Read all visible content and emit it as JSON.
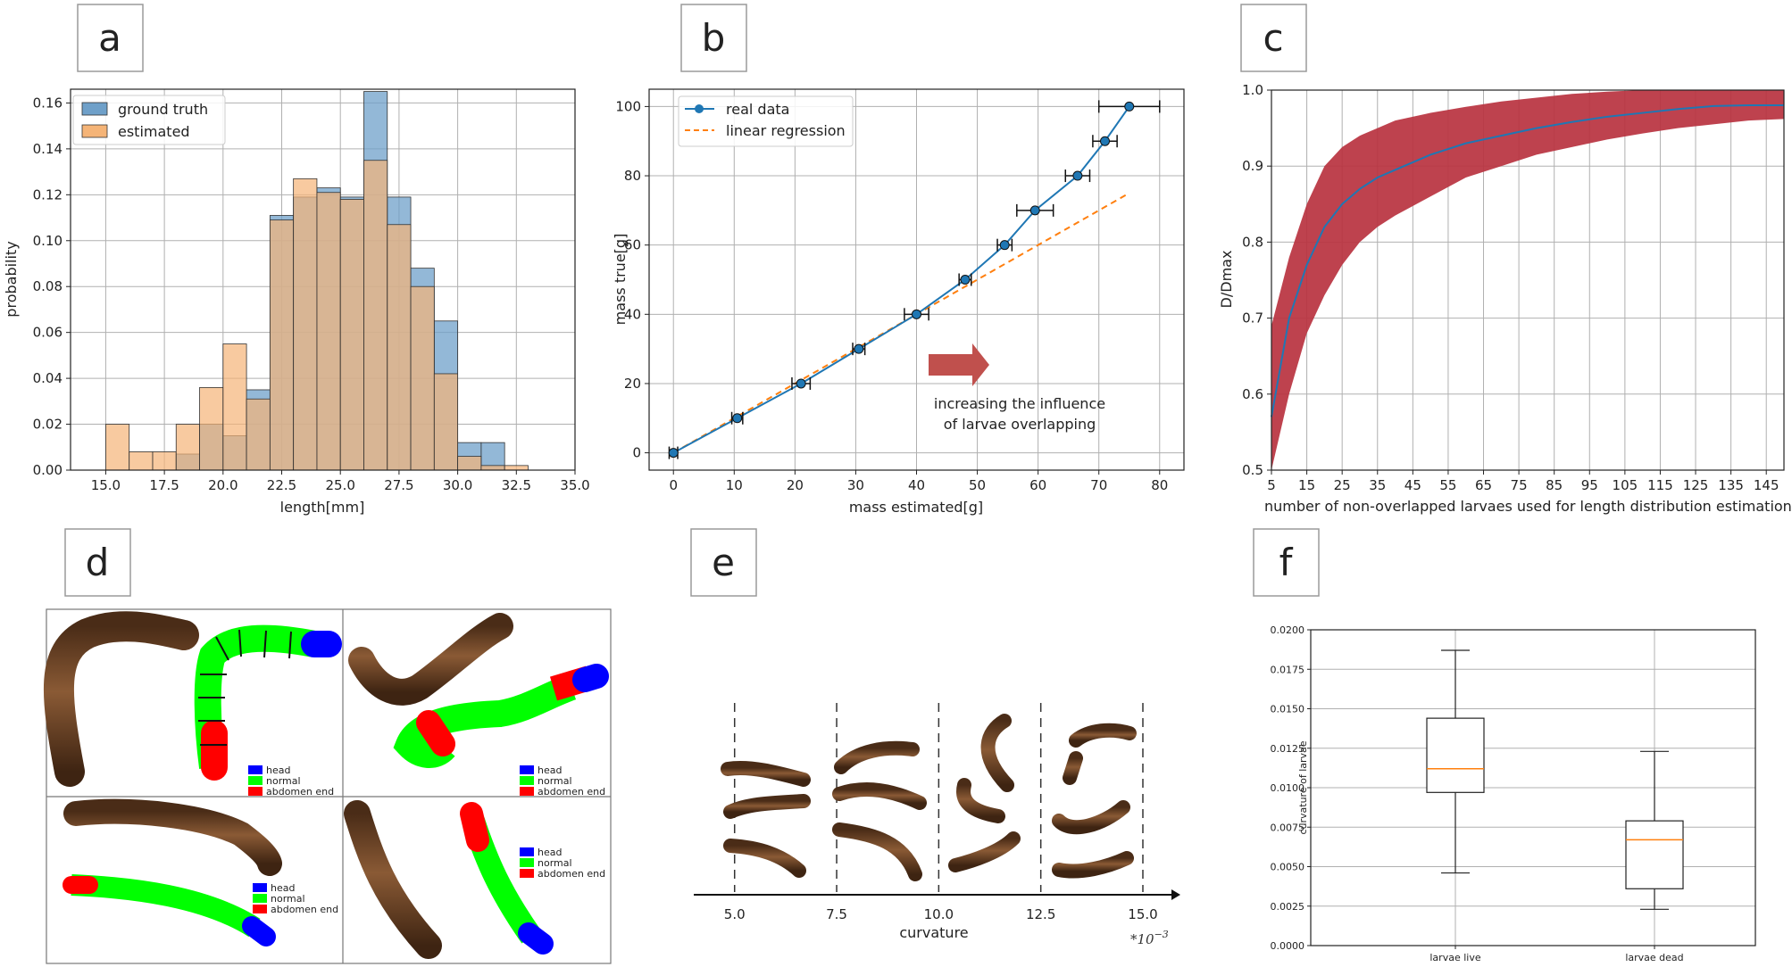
{
  "panels": {
    "a": "a",
    "b": "b",
    "c": "c",
    "d": "d",
    "e": "e",
    "f": "f"
  },
  "colors": {
    "blue": "#1f77b4",
    "orange": "#ff7f0e",
    "truth_fill": "#6fa0c9",
    "est_fill": "#f5b477",
    "band": "#b8323f",
    "arrow": "#c0504d",
    "head": "#0000ff",
    "normal": "#00ff00",
    "abdomen": "#ff0000",
    "larva": "#6b4226"
  },
  "chart_data": [
    {
      "id": "a",
      "type": "bar",
      "subtype": "step-histogram",
      "xlabel": "length[mm]",
      "ylabel": "probability",
      "xlim": [
        13.5,
        35.0
      ],
      "ylim": [
        0.0,
        0.166
      ],
      "xticks": [
        "15.0",
        "17.5",
        "20.0",
        "22.5",
        "25.0",
        "27.5",
        "30.0",
        "32.5",
        "35.0"
      ],
      "yticks": [
        "0.00",
        "0.02",
        "0.04",
        "0.06",
        "0.08",
        "0.10",
        "0.12",
        "0.14",
        "0.16"
      ],
      "legend": [
        "ground truth",
        "estimated"
      ],
      "series": [
        {
          "name": "ground truth",
          "bins": [
            [
              18.0,
              19.0,
              0.007
            ],
            [
              19.0,
              20.0,
              0.02
            ],
            [
              20.0,
              21.0,
              0.015
            ],
            [
              21.0,
              22.0,
              0.035
            ],
            [
              22.0,
              23.0,
              0.111
            ],
            [
              23.0,
              24.0,
              0.119
            ],
            [
              24.0,
              25.0,
              0.123
            ],
            [
              25.0,
              26.0,
              0.119
            ],
            [
              26.0,
              27.0,
              0.165
            ],
            [
              27.0,
              28.0,
              0.119
            ],
            [
              28.0,
              29.0,
              0.088
            ],
            [
              29.0,
              30.0,
              0.065
            ],
            [
              30.0,
              31.0,
              0.012
            ],
            [
              31.0,
              32.0,
              0.012
            ]
          ]
        },
        {
          "name": "estimated",
          "bins": [
            [
              15.0,
              16.0,
              0.02
            ],
            [
              16.0,
              17.0,
              0.008
            ],
            [
              17.0,
              18.0,
              0.008
            ],
            [
              18.0,
              19.0,
              0.02
            ],
            [
              19.0,
              20.0,
              0.036
            ],
            [
              20.0,
              21.0,
              0.055
            ],
            [
              21.0,
              22.0,
              0.031
            ],
            [
              22.0,
              23.0,
              0.109
            ],
            [
              23.0,
              24.0,
              0.127
            ],
            [
              24.0,
              25.0,
              0.121
            ],
            [
              25.0,
              26.0,
              0.118
            ],
            [
              26.0,
              27.0,
              0.135
            ],
            [
              27.0,
              28.0,
              0.107
            ],
            [
              28.0,
              29.0,
              0.08
            ],
            [
              29.0,
              30.0,
              0.042
            ],
            [
              30.0,
              31.0,
              0.006
            ],
            [
              31.0,
              32.0,
              0.002
            ],
            [
              32.0,
              33.0,
              0.002
            ]
          ]
        }
      ]
    },
    {
      "id": "b",
      "type": "line",
      "xlabel": "mass estimated[g]",
      "ylabel": "mass true[g]",
      "xlim": [
        -4,
        84
      ],
      "ylim": [
        -5,
        105
      ],
      "xticks": [
        "0",
        "10",
        "20",
        "30",
        "40",
        "50",
        "60",
        "70",
        "80"
      ],
      "yticks": [
        "0",
        "20",
        "40",
        "60",
        "80",
        "100"
      ],
      "legend": [
        "real data",
        "linear regression"
      ],
      "series": [
        {
          "name": "real data",
          "x": [
            0,
            10.5,
            21,
            30.5,
            40,
            48,
            54.5,
            59.5,
            66.5,
            71,
            75
          ],
          "y": [
            0,
            10,
            20,
            30,
            40,
            50,
            60,
            70,
            80,
            90,
            100
          ],
          "xerr": [
            0.7,
            0.9,
            1.5,
            1.0,
            2.0,
            1.0,
            1.2,
            3.0,
            2.0,
            2.0,
            5.0
          ]
        },
        {
          "name": "linear regression",
          "x": [
            0,
            74.5
          ],
          "y": [
            0,
            74.5
          ]
        }
      ],
      "annotation": [
        "increasing the influence",
        "of larvae overlapping"
      ]
    },
    {
      "id": "c",
      "type": "area",
      "xlabel": "number of non-overlapped larvaes used for length distribution estimation",
      "ylabel": "D/Dmax",
      "xlim": [
        5,
        150
      ],
      "ylim": [
        0.5,
        1.0
      ],
      "xticks": [
        "5",
        "15",
        "25",
        "35",
        "45",
        "55",
        "65",
        "75",
        "85",
        "95",
        "105",
        "115",
        "125",
        "135",
        "145"
      ],
      "yticks": [
        "0.5",
        "0.6",
        "0.7",
        "0.8",
        "0.9",
        "1.0"
      ],
      "series": [
        {
          "name": "mean",
          "x": [
            5,
            10,
            15,
            20,
            25,
            30,
            35,
            40,
            50,
            60,
            70,
            80,
            90,
            100,
            110,
            120,
            130,
            140,
            150
          ],
          "y": [
            0.57,
            0.7,
            0.77,
            0.82,
            0.85,
            0.87,
            0.885,
            0.895,
            0.915,
            0.93,
            0.94,
            0.95,
            0.958,
            0.965,
            0.97,
            0.975,
            0.979,
            0.98,
            0.98
          ]
        },
        {
          "name": "lower",
          "x": [
            5,
            10,
            15,
            20,
            25,
            30,
            35,
            40,
            50,
            60,
            70,
            80,
            90,
            100,
            110,
            120,
            130,
            140,
            150
          ],
          "y": [
            0.5,
            0.6,
            0.68,
            0.73,
            0.77,
            0.8,
            0.82,
            0.835,
            0.86,
            0.885,
            0.9,
            0.915,
            0.925,
            0.935,
            0.943,
            0.95,
            0.955,
            0.96,
            0.962
          ]
        },
        {
          "name": "upper",
          "x": [
            5,
            10,
            15,
            20,
            25,
            30,
            35,
            40,
            50,
            60,
            70,
            80,
            90,
            100,
            110,
            120,
            130,
            140,
            150
          ],
          "y": [
            0.69,
            0.78,
            0.85,
            0.9,
            0.925,
            0.94,
            0.95,
            0.96,
            0.97,
            0.978,
            0.985,
            0.99,
            0.995,
            0.998,
            1.0,
            1.0,
            1.0,
            1.0,
            1.0
          ]
        }
      ]
    },
    {
      "id": "e",
      "type": "scatter",
      "subtype": "curvature-axis",
      "xlabel": "curvature",
      "xlim": [
        4.0,
        15.7
      ],
      "xticks": [
        "5.0",
        "7.5",
        "10.0",
        "12.5",
        "15.0"
      ],
      "dividers": [
        5.0,
        7.5,
        10.0,
        12.5,
        15.0
      ],
      "scale_note": "*10",
      "scale_exp": "−3"
    },
    {
      "id": "f",
      "type": "box",
      "ylabel": "curvature of larvae",
      "ylim": [
        0.0,
        0.02
      ],
      "yticks": [
        "0.0000",
        "0.0025",
        "0.0050",
        "0.0075",
        "0.0100",
        "0.0125",
        "0.0150",
        "0.0175",
        "0.0200"
      ],
      "categories": [
        "larvae live",
        "larvae dead"
      ],
      "boxes": [
        {
          "name": "larvae live",
          "whislo": 0.0046,
          "q1": 0.0097,
          "med": 0.0112,
          "q3": 0.0144,
          "whishi": 0.0187
        },
        {
          "name": "larvae dead",
          "whislo": 0.0023,
          "q1": 0.0036,
          "med": 0.0067,
          "q3": 0.0079,
          "whishi": 0.0123
        }
      ]
    }
  ],
  "segmentation_legend": {
    "head": "head",
    "normal": "normal",
    "abdomen": "abdomen end"
  }
}
